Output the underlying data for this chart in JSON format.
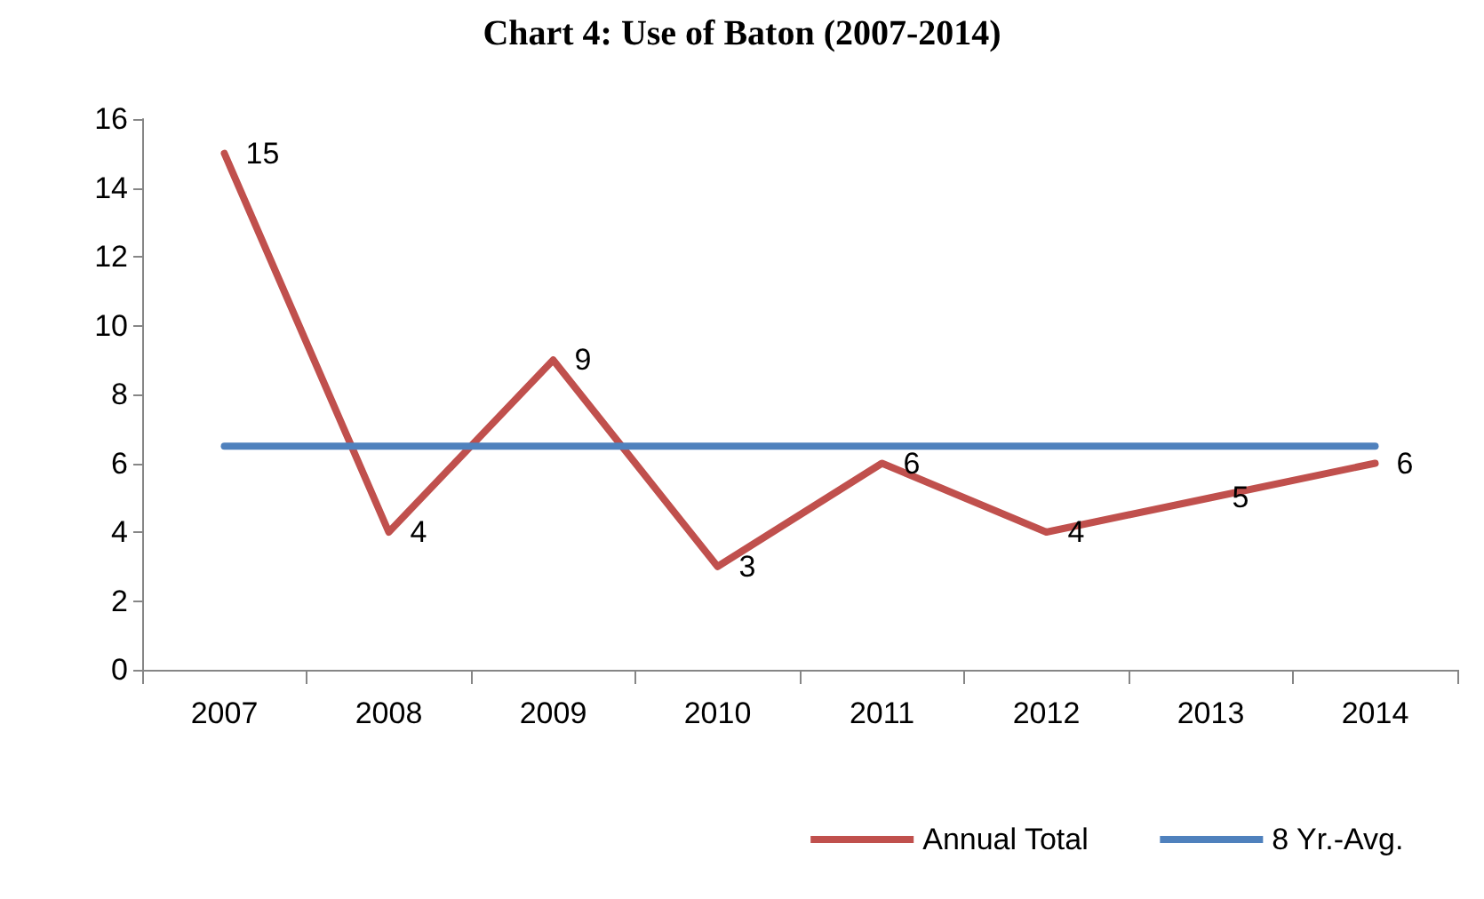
{
  "chart_data": {
    "type": "line",
    "title": "Chart 4: Use of Baton (2007-2014)",
    "categories": [
      "2007",
      "2008",
      "2009",
      "2010",
      "2011",
      "2012",
      "2013",
      "2014"
    ],
    "series": [
      {
        "name": "Annual Total",
        "color": "#c0504d",
        "values": [
          15,
          4,
          9,
          3,
          6,
          4,
          5,
          6
        ],
        "value_labels": [
          "15",
          "4",
          "9",
          "3",
          "6",
          "4",
          "5",
          "6"
        ]
      },
      {
        "name": "8 Yr.-Avg.",
        "color": "#4f81bd",
        "values": [
          6.5,
          6.5,
          6.5,
          6.5,
          6.5,
          6.5,
          6.5,
          6.5
        ]
      }
    ],
    "ylim": [
      0,
      16
    ],
    "yticks": [
      0,
      2,
      4,
      6,
      8,
      10,
      12,
      14,
      16
    ],
    "grid": false,
    "legend": "bottom right",
    "marker": "none",
    "line_style": "solid"
  }
}
